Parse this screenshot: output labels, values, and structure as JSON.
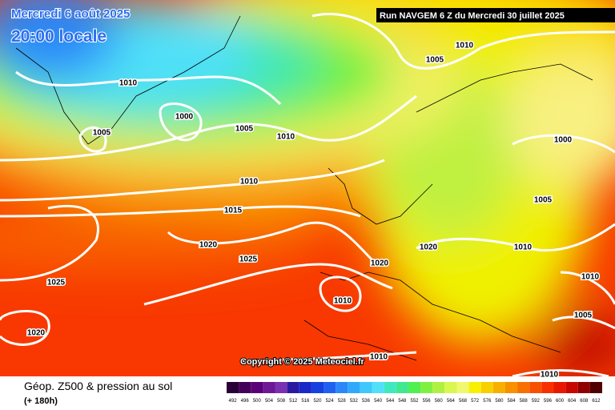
{
  "header": {
    "valid_date": "Mercredi 6 août 2025",
    "local_time": "20:00 locale",
    "run": "Run NAVGEM 6 Z du Mercredi 30 juillet 2025",
    "copyright": "Copyright © 2025 Meteociel.fr"
  },
  "isobar_labels": [
    1010,
    1000,
    1005,
    1005,
    1010,
    1010,
    1005,
    1000,
    1010,
    1015,
    1005,
    1020,
    1025,
    1020,
    1020,
    1010,
    1025,
    1010,
    1010,
    1005,
    1020,
    1010,
    1010
  ],
  "footer": {
    "title": "Géop. Z500 & pression au sol",
    "lead_time": "(+ 180h)"
  },
  "legend": {
    "ticks": [
      492,
      496,
      500,
      504,
      508,
      512,
      516,
      520,
      524,
      528,
      532,
      536,
      540,
      544,
      548,
      552,
      556,
      560,
      564,
      568,
      572,
      576,
      580,
      584,
      588,
      592,
      596,
      600,
      604,
      608,
      612
    ],
    "colors": [
      "#2a0038",
      "#420058",
      "#5a0078",
      "#6e1896",
      "#7a30b0",
      "#2a1aa0",
      "#1a28c8",
      "#1840e0",
      "#2060f0",
      "#2c88f8",
      "#30a8fc",
      "#40c8fc",
      "#50e0f8",
      "#40e8c0",
      "#40e890",
      "#50f050",
      "#80f040",
      "#b0f040",
      "#d8f850",
      "#f0f870",
      "#f8f000",
      "#f8d000",
      "#f8b000",
      "#f89000",
      "#f87000",
      "#f85000",
      "#f83000",
      "#e81800",
      "#c80800",
      "#900000",
      "#500000"
    ]
  }
}
